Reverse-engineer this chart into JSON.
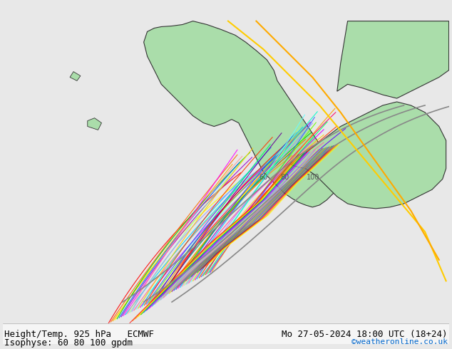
{
  "title_left_line1": "Height/Temp. 925 hPa   ECMWF",
  "title_left_line2": "Isophyse: 60 80 100 gpdm",
  "title_right_line1": "Mo 27-05-2024 18:00 UTC (18+24)",
  "title_right_line2": "©weatheronline.co.uk",
  "title_right_line2_color": "#0066cc",
  "bg_color": "#e8e8e8",
  "map_bg_color": "#e8e8e8",
  "land_color": "#aaddaa",
  "border_color": "#333333",
  "label_color": "#000000",
  "bottom_bar_color": "#f0f0f0",
  "fig_width": 6.34,
  "fig_height": 4.9,
  "dpi": 100,
  "font_size_labels": 9,
  "font_size_credit": 8
}
